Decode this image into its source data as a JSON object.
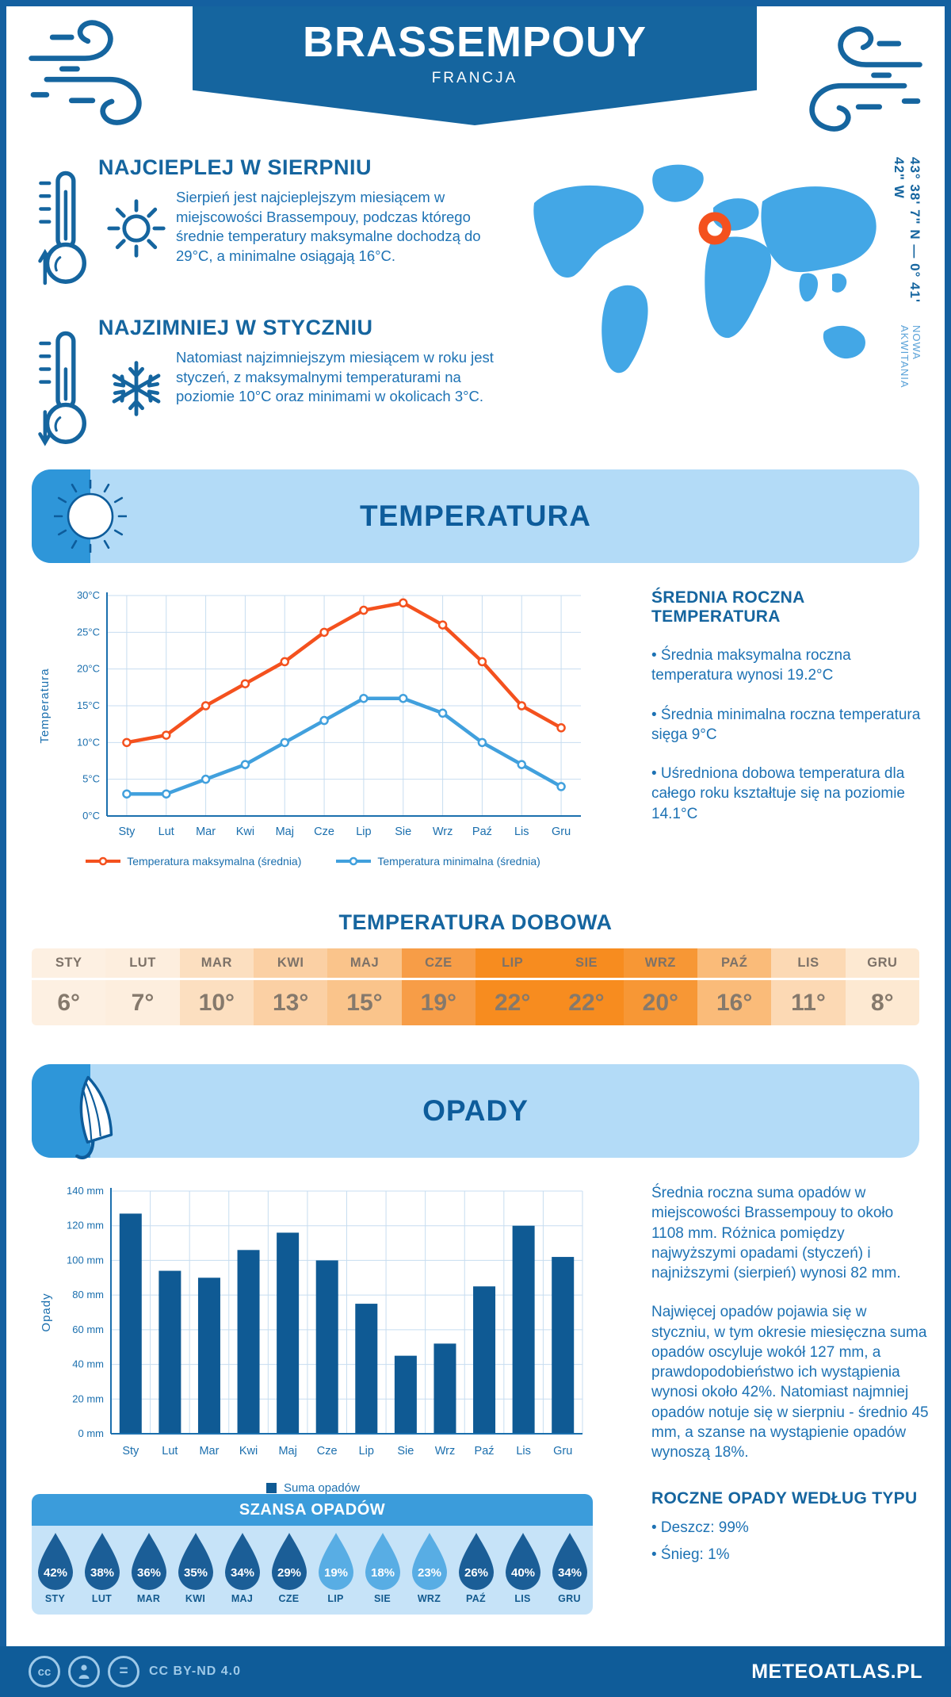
{
  "header": {
    "title": "BRASSEMPOUY",
    "subtitle": "FRANCJA"
  },
  "location": {
    "coordinates": "43° 38' 7\" N — 0° 41' 42\" W",
    "region": "NOWA AKWITANIA"
  },
  "highlights": {
    "warmest": {
      "title": "NAJCIEPLEJ W SIERPNIU",
      "text": "Sierpień jest najcieplejszym miesiącem w miejscowości Brassempouy, podczas którego średnie temperatury maksymalne dochodzą do 29°C, a minimalne osiągają 16°C."
    },
    "coldest": {
      "title": "NAJZIMNIEJ W STYCZNIU",
      "text": "Natomiast najzimniejszym miesiącem w roku jest styczeń, z maksymalnymi temperaturami na poziomie 10°C oraz minimami w okolicach 3°C."
    }
  },
  "temperature_section": {
    "title": "TEMPERATURA",
    "annual": {
      "heading": "ŚREDNIA ROCZNA TEMPERATURA",
      "bullets": [
        "• Średnia maksymalna roczna temperatura wynosi 19.2°C",
        "• Średnia minimalna roczna temperatura sięga 9°C",
        "• Uśredniona dobowa temperatura dla całego roku kształtuje się na poziomie 14.1°C"
      ]
    },
    "daily": {
      "heading": "TEMPERATURA DOBOWA",
      "months": [
        "STY",
        "LUT",
        "MAR",
        "KWI",
        "MAJ",
        "CZE",
        "LIP",
        "SIE",
        "WRZ",
        "PAŹ",
        "LIS",
        "GRU"
      ],
      "values": [
        "6°",
        "7°",
        "10°",
        "13°",
        "15°",
        "19°",
        "22°",
        "22°",
        "20°",
        "16°",
        "11°",
        "8°"
      ],
      "colors": [
        "#fdf0e2",
        "#fdeede",
        "#fcdfc0",
        "#fbd0a4",
        "#fac48b",
        "#f79d47",
        "#f78c1f",
        "#f78c1f",
        "#f79735",
        "#fabb79",
        "#fcd9b4",
        "#fde9d2"
      ]
    }
  },
  "precipitation_section": {
    "title": "OPADY",
    "paragraphs": [
      "Średnia roczna suma opadów w miejscowości Brassempouy to około 1108 mm. Różnica pomiędzy najwyższymi opadami (styczeń) i najniższymi (sierpień) wynosi 82 mm.",
      "Najwięcej opadów pojawia się w styczniu, w tym okresie miesięczna suma opadów oscyluje wokół 127 mm, a prawdopodobieństwo ich wystąpienia wynosi około 42%. Natomiast najmniej opadów notuje się w sierpniu - średnio 45 mm, a szanse na wystąpienie opadów wynoszą 18%."
    ],
    "types": {
      "heading": "ROCZNE OPADY WEDŁUG TYPU",
      "bullets": [
        "• Deszcz: 99%",
        "• Śnieg: 1%"
      ]
    },
    "chance": {
      "heading": "SZANSA OPADÓW",
      "months": [
        "STY",
        "LUT",
        "MAR",
        "KWI",
        "MAJ",
        "CZE",
        "LIP",
        "SIE",
        "WRZ",
        "PAŹ",
        "LIS",
        "GRU"
      ],
      "values": [
        "42%",
        "38%",
        "36%",
        "35%",
        "34%",
        "29%",
        "19%",
        "18%",
        "23%",
        "26%",
        "40%",
        "34%"
      ],
      "light": [
        false,
        false,
        false,
        false,
        false,
        false,
        true,
        true,
        true,
        false,
        false,
        false
      ]
    }
  },
  "chart_data": [
    {
      "type": "line",
      "x": [
        "Sty",
        "Lut",
        "Mar",
        "Kwi",
        "Maj",
        "Cze",
        "Lip",
        "Sie",
        "Wrz",
        "Paź",
        "Lis",
        "Gru"
      ],
      "ylabel": "Temperatura",
      "ylim": [
        0,
        30
      ],
      "ytick_step": 5,
      "ytick_suffix": "°C",
      "grid": true,
      "legend_position": "bottom",
      "series": [
        {
          "name": "Temperatura maksymalna (średnia)",
          "color": "#f4511e",
          "values": [
            10,
            11,
            15,
            18,
            21,
            25,
            28,
            29,
            26,
            21,
            15,
            12
          ]
        },
        {
          "name": "Temperatura minimalna (średnia)",
          "color": "#41a0dd",
          "values": [
            3,
            3,
            5,
            7,
            10,
            13,
            16,
            16,
            14,
            10,
            7,
            4
          ]
        }
      ]
    },
    {
      "type": "bar",
      "categories": [
        "Sty",
        "Lut",
        "Mar",
        "Kwi",
        "Maj",
        "Cze",
        "Lip",
        "Sie",
        "Wrz",
        "Paź",
        "Lis",
        "Gru"
      ],
      "values": [
        127,
        94,
        90,
        106,
        116,
        100,
        75,
        45,
        52,
        85,
        120,
        102
      ],
      "ylabel": "Opady",
      "ylim": [
        0,
        140
      ],
      "ytick_step": 20,
      "ytick_suffix": " mm",
      "bar_color": "#0f5a94",
      "grid": true,
      "legend": "Suma opadów"
    }
  ],
  "theme": {
    "navy": "#0f5c99",
    "blue": "#15659f",
    "text_blue": "#1d72b4",
    "band_bg": "#b3dbf7",
    "band_square": "#2e96d9",
    "band_title": "#0d5c9b",
    "map_blue": "#43a7e6",
    "marker_orange": "#f4511e",
    "axis_blue": "#1b6fae",
    "grid_blue": "#c7ddf0",
    "bar_blue": "#0f5a94",
    "chance_header_bg": "#3b9cdb",
    "chance_bg": "#c6e3f8",
    "drop_dark": "#1b5e97",
    "drop_light": "#58ade4",
    "footer_muted": "#9ec9e8"
  },
  "footer": {
    "license": "CC BY-ND 4.0",
    "brand": "METEOATLAS.PL"
  }
}
